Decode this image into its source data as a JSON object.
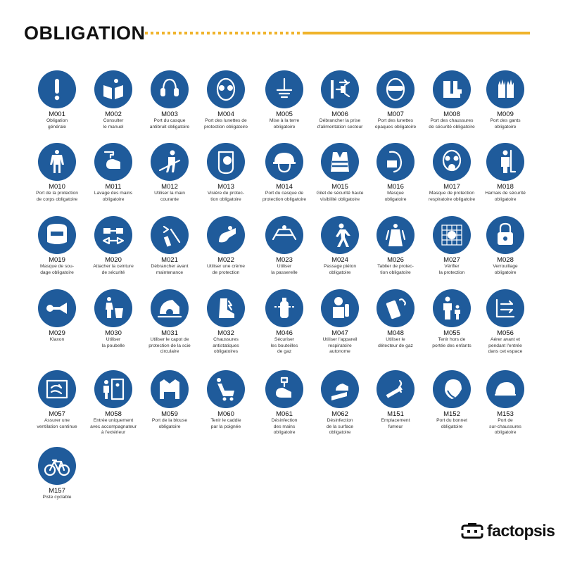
{
  "header": {
    "title": "OBLIGATION",
    "accent": "#f0b32a"
  },
  "sign_color": "#1f5b9b",
  "signs": [
    {
      "code": "M001",
      "label": "Obligation\ngénérale",
      "icon": "exclamation-icon"
    },
    {
      "code": "M002",
      "label": "Consulter\nle manuel",
      "icon": "manual-icon"
    },
    {
      "code": "M003",
      "label": "Port du casque\nantibruit obligatoire",
      "icon": "ear-protection-icon"
    },
    {
      "code": "M004",
      "label": "Port des lunettes de\nprotection obligatoire",
      "icon": "safety-glasses-icon"
    },
    {
      "code": "M005",
      "label": "Mise à la terre\nobligatoire",
      "icon": "ground-icon"
    },
    {
      "code": "M006",
      "label": "Débrancher la prise\nd'alimentation secteur",
      "icon": "unplug-icon"
    },
    {
      "code": "M007",
      "label": "Port des lunettes\nopaques obligatoire",
      "icon": "opaque-glasses-icon"
    },
    {
      "code": "M008",
      "label": "Port des chaussures\nde sécurité obligatoire",
      "icon": "safety-boots-icon"
    },
    {
      "code": "M009",
      "label": "Port des gants\nobligatoire",
      "icon": "gloves-icon"
    },
    {
      "code": "M010",
      "label": "Port de la protection\nde corps obligatoire",
      "icon": "coverall-icon"
    },
    {
      "code": "M011",
      "label": "Lavage des mains\nobligatoire",
      "icon": "hand-wash-icon"
    },
    {
      "code": "M012",
      "label": "Utiliser la main\ncourante",
      "icon": "handrail-icon"
    },
    {
      "code": "M013",
      "label": "Visière de protec-\ntion obligatoire",
      "icon": "face-shield-icon"
    },
    {
      "code": "M014",
      "label": "Port du casque de\nprotection obligatoire",
      "icon": "hard-hat-icon"
    },
    {
      "code": "M015",
      "label": "Gilet de sécurité haute\nvisibilité obligatoire",
      "icon": "hi-vis-vest-icon"
    },
    {
      "code": "M016",
      "label": "Masque\nobligatoire",
      "icon": "mask-icon"
    },
    {
      "code": "M017",
      "label": "Masque de protection\nrespiratoire obligatoire",
      "icon": "respirator-icon"
    },
    {
      "code": "M018",
      "label": "Harnais de sécurité\nobligatoire",
      "icon": "harness-icon"
    },
    {
      "code": "M019",
      "label": "Masque de sou-\ndage obligatoire",
      "icon": "welding-mask-icon"
    },
    {
      "code": "M020",
      "label": "Attacher la ceinture\nde sécurité",
      "icon": "seat-belt-icon"
    },
    {
      "code": "M021",
      "label": "Débrancher avant\nmaintenance",
      "icon": "disconnect-icon"
    },
    {
      "code": "M022",
      "label": "Utiliser une crème\nde protection",
      "icon": "cream-icon"
    },
    {
      "code": "M023",
      "label": "Utiliser\nla passerelle",
      "icon": "footbridge-icon"
    },
    {
      "code": "M024",
      "label": "Passage piéton\nobligatoire",
      "icon": "pedestrian-icon"
    },
    {
      "code": "M026",
      "label": "Tablier de protec-\ntion obligatoire",
      "icon": "apron-icon"
    },
    {
      "code": "M027",
      "label": "Vérifier\nla protection",
      "icon": "check-guard-icon"
    },
    {
      "code": "M028",
      "label": "Verrouillage\nobligatoire",
      "icon": "padlock-icon"
    },
    {
      "code": "M029",
      "label": "Klaxon",
      "icon": "horn-icon"
    },
    {
      "code": "M030",
      "label": "Utiliser\nla poubelle",
      "icon": "trash-can-icon"
    },
    {
      "code": "M031",
      "label": "Utiliser le capot de\nprotection de la scie\ncirculaire",
      "icon": "saw-guard-icon"
    },
    {
      "code": "M032",
      "label": "Chaussures\nantistatiques\nobligatoires",
      "icon": "antistatic-shoe-icon"
    },
    {
      "code": "M046",
      "label": "Sécuriser\nles bouteilles\nde gaz",
      "icon": "gas-cylinder-icon"
    },
    {
      "code": "M047",
      "label": "Utiliser l'appareil\nrespiratoire\nautonome",
      "icon": "breathing-apparatus-icon"
    },
    {
      "code": "M048",
      "label": "Utiliser le\ndétecteur de gaz",
      "icon": "gas-detector-icon"
    },
    {
      "code": "M055",
      "label": "Tenir hors de\nportée des enfants",
      "icon": "keep-from-children-icon"
    },
    {
      "code": "M056",
      "label": "Aérer avant et\npendant l'entrée\ndans cet espace",
      "icon": "ventilate-space-icon"
    },
    {
      "code": "M057",
      "label": "Assurer une\nventilation continue",
      "icon": "ventilation-icon"
    },
    {
      "code": "M058",
      "label": "Entrée uniquement\navec accompagnateur\nà l'extérieur",
      "icon": "attendant-icon"
    },
    {
      "code": "M059",
      "label": "Port de la blouse\nobligatoire",
      "icon": "lab-coat-icon"
    },
    {
      "code": "M060",
      "label": "Tenir le caddie\npar la poignée",
      "icon": "trolley-icon"
    },
    {
      "code": "M061",
      "label": "Désinfection\ndes mains\nobligatoire",
      "icon": "hand-disinfect-icon"
    },
    {
      "code": "M062",
      "label": "Désinfection\nde la surface\nobligatoire",
      "icon": "surface-disinfect-icon"
    },
    {
      "code": "M151",
      "label": "Emplacement\nfumeur",
      "icon": "smoking-area-icon"
    },
    {
      "code": "M152",
      "label": "Port du bonnet\nobligatoire",
      "icon": "hair-cap-icon"
    },
    {
      "code": "M153",
      "label": "Port de\nsur-chaussures\nobligatoire",
      "icon": "shoe-cover-icon"
    },
    {
      "code": "M157",
      "label": "Piste cyclable",
      "icon": "bicycle-icon"
    }
  ],
  "brand": {
    "name": "factopsis"
  }
}
